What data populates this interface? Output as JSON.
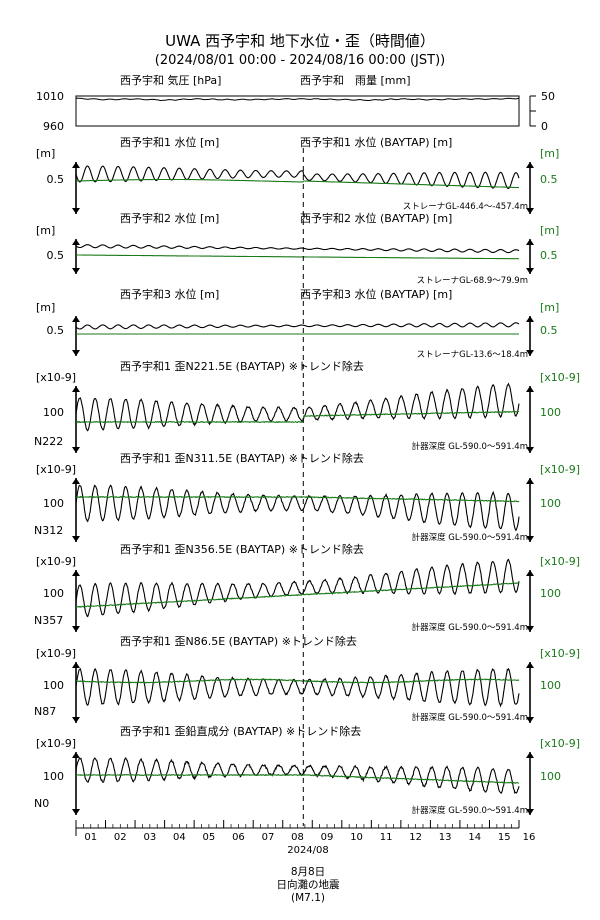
{
  "title": "UWA 西予宇和 地下水位・歪（時間値）",
  "subtitle": "(2024/08/01 00:00 - 2024/08/16 00:00 (JST))",
  "colors": {
    "black": "#000000",
    "green": "#1a7a1a"
  },
  "panels": [
    {
      "id": "p0",
      "title_left": "西予宇和 気圧 [hPa]",
      "title_right": "西予宇和　雨量 [mm]",
      "left_ticks": [
        "1010",
        "960"
      ],
      "right_ticks": [
        "50",
        "0"
      ],
      "note": "",
      "station": ""
    },
    {
      "id": "p1",
      "title_left": "西予宇和1 水位 [m]",
      "title_right": "西予宇和1 水位 (BAYTAP) [m]",
      "left_unit": "[m]",
      "right_unit": "[m]",
      "left_tick": "0.5",
      "right_tick": "0.5",
      "note": "ストレーナGL-446.4〜-457.4m",
      "station": ""
    },
    {
      "id": "p2",
      "title_left": "西予宇和2 水位 [m]",
      "title_right": "西予宇和2 水位 (BAYTAP) [m]",
      "left_unit": "[m]",
      "right_unit": "[m]",
      "left_tick": "0.5",
      "right_tick": "0.5",
      "note": "ストレーナGL-68.9〜79.9m",
      "station": ""
    },
    {
      "id": "p3",
      "title_left": "西予宇和3 水位 [m]",
      "title_right": "西予宇和3 水位 (BAYTAP) [m]",
      "left_unit": "[m]",
      "right_unit": "[m]",
      "left_tick": "0.5",
      "right_tick": "0.5",
      "note": "ストレーナGL-13.6〜18.4m",
      "station": ""
    },
    {
      "id": "p4",
      "title_left": "西予宇和1 歪N221.5E (BAYTAP) ※トレンド除去",
      "title_right": "",
      "left_unit": "[x10-9]",
      "right_unit": "[x10-9]",
      "left_tick": "100",
      "right_tick": "100",
      "note": "計器深度 GL-590.0〜591.4m",
      "station": "N222"
    },
    {
      "id": "p5",
      "title_left": "西予宇和1 歪N311.5E (BAYTAP) ※トレンド除去",
      "title_right": "",
      "left_unit": "[x10-9]",
      "right_unit": "[x10-9]",
      "left_tick": "100",
      "right_tick": "100",
      "note": "計器深度 GL-590.0〜591.4m",
      "station": "N312"
    },
    {
      "id": "p6",
      "title_left": "西予宇和1 歪N356.5E (BAYTAP) ※トレンド除去",
      "title_right": "",
      "left_unit": "[x10-9]",
      "right_unit": "[x10-9]",
      "left_tick": "100",
      "right_tick": "100",
      "note": "計器深度 GL-590.0〜591.4m",
      "station": "N357"
    },
    {
      "id": "p7",
      "title_left": "西予宇和1 歪N86.5E (BAYTAP) ※トレンド除去",
      "title_right": "",
      "left_unit": "[x10-9]",
      "right_unit": "[x10-9]",
      "left_tick": "100",
      "right_tick": "100",
      "note": "計器深度 GL-590.0〜591.4m",
      "station": "N87"
    },
    {
      "id": "p8",
      "title_left": "西予宇和1 歪鉛直成分 (BAYTAP) ※トレンド除去",
      "title_right": "",
      "left_unit": "[x10-9]",
      "right_unit": "[x10-9]",
      "left_tick": "100",
      "right_tick": "100",
      "note": "計器深度 GL-590.0〜591.4m",
      "station": "N0"
    }
  ],
  "x_axis": {
    "tick_labels": [
      "01",
      "02",
      "03",
      "04",
      "05",
      "06",
      "07",
      "08",
      "09",
      "10",
      "11",
      "12",
      "13",
      "14",
      "15",
      "16"
    ],
    "month_label": "2024/08"
  },
  "event": {
    "line1": "8月8日",
    "line2": "日向灘の地震",
    "line3": "(M7.1)"
  },
  "chart_data": {
    "type": "line",
    "x_range": [
      "2024-08-01T00:00",
      "2024-08-16T00:00"
    ],
    "event_marker_x": "2024-08-08T16:43",
    "sampling": "hourly",
    "series": [
      {
        "panel": "p0",
        "axis": "left",
        "color": "black",
        "data_ranges": [
          960,
          1010
        ],
        "approx_values": [
          1006,
          1004,
          1005,
          1003,
          1005,
          1004,
          1004,
          1005,
          1005,
          1004,
          1003,
          1005,
          1004,
          1005,
          1005,
          1006
        ]
      },
      {
        "panel": "p1",
        "axis": "left",
        "color": "black",
        "note": "semi-diurnal tide, gradual decline, offset step at event"
      },
      {
        "panel": "p1",
        "axis": "right",
        "color": "green",
        "note": "smoothed, decreasing after event"
      },
      {
        "panel": "p2",
        "axis": "left",
        "color": "black",
        "note": "small tidal oscillation, slowly decreasing"
      },
      {
        "panel": "p2",
        "axis": "right",
        "color": "green",
        "note": "smooth, slowly decreasing"
      },
      {
        "panel": "p3",
        "axis": "left",
        "color": "black",
        "note": "small tidal oscillation, slowly rising"
      },
      {
        "panel": "p3",
        "axis": "right",
        "color": "green",
        "note": "smooth, flat"
      },
      {
        "panel": "p4",
        "axis": "left",
        "color": "black",
        "note": "large tidal strain, upward trend after event"
      },
      {
        "panel": "p4",
        "axis": "right",
        "color": "green",
        "note": "trend after tide removal"
      },
      {
        "panel": "p5",
        "axis": "left",
        "color": "black",
        "note": "large tidal strain, downward trend after event"
      },
      {
        "panel": "p5",
        "axis": "right",
        "color": "green",
        "note": "trend after tide removal"
      },
      {
        "panel": "p6",
        "axis": "left",
        "color": "black",
        "note": "large tidal strain, upward trend"
      },
      {
        "panel": "p6",
        "axis": "right",
        "color": "green",
        "note": "trend after tide removal"
      },
      {
        "panel": "p7",
        "axis": "left",
        "color": "black",
        "note": "tidal strain"
      },
      {
        "panel": "p7",
        "axis": "right",
        "color": "green",
        "note": "flat trend"
      },
      {
        "panel": "p8",
        "axis": "left",
        "color": "black",
        "note": "tidal strain, declining after event"
      },
      {
        "panel": "p8",
        "axis": "right",
        "color": "green",
        "note": "declining trend"
      }
    ]
  }
}
